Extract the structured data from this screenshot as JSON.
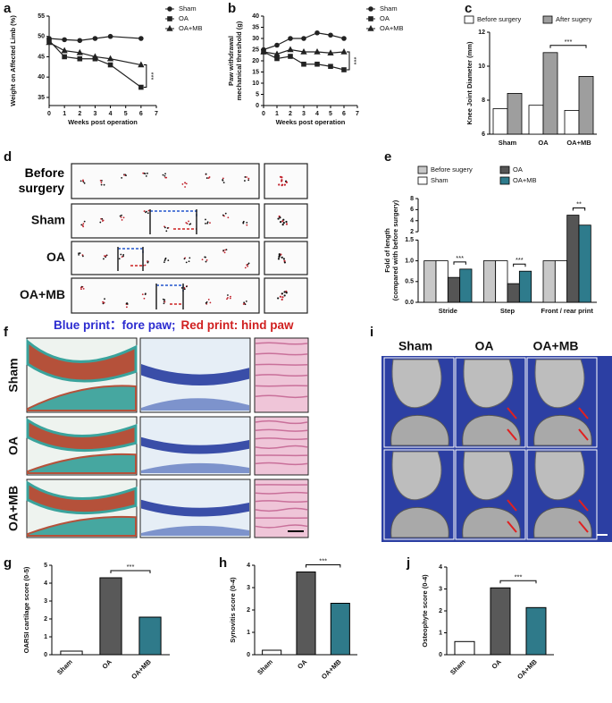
{
  "chart_data": [
    {
      "type": "line",
      "label": "a",
      "ylabel": "Weight on Affected Limb (%)",
      "xlabel": "Weeks post operation",
      "x": [
        0,
        1,
        2,
        3,
        4,
        6
      ],
      "xlim": [
        0,
        7
      ],
      "xticks": [
        0,
        1,
        2,
        3,
        4,
        5,
        6,
        7
      ],
      "ylim": [
        33,
        55
      ],
      "yticks": [
        35,
        40,
        45,
        50,
        55
      ],
      "legend": "right",
      "series": [
        {
          "name": "Sham",
          "color": "#222222",
          "marker": "circle",
          "values": [
            49.5,
            49.2,
            49,
            49.5,
            50,
            49.5
          ]
        },
        {
          "name": "OA",
          "color": "#222222",
          "marker": "square",
          "values": [
            49,
            45,
            44.5,
            44.5,
            43,
            37.5
          ]
        },
        {
          "name": "OA+MB",
          "color": "#222222",
          "marker": "triangle",
          "values": [
            48.5,
            46.5,
            46,
            45,
            44.5,
            43
          ]
        }
      ],
      "annotations": [
        {
          "text": "***",
          "from": "OA",
          "to": "OA+MB"
        }
      ]
    },
    {
      "type": "line",
      "label": "b",
      "ylabel": [
        "Paw withdrawal",
        "mechanical threshold (g)"
      ],
      "xlabel": "Weeks post operation",
      "x": [
        0,
        1,
        2,
        3,
        4,
        5,
        6
      ],
      "xlim": [
        0,
        7
      ],
      "xticks": [
        0,
        1,
        2,
        3,
        4,
        5,
        6,
        7
      ],
      "ylim": [
        0,
        40
      ],
      "yticks": [
        0,
        5,
        10,
        15,
        20,
        25,
        30,
        35,
        40
      ],
      "legend": "right",
      "series": [
        {
          "name": "Sham",
          "color": "#222222",
          "marker": "circle",
          "values": [
            25,
            27,
            30,
            30,
            32.5,
            31.5,
            30
          ]
        },
        {
          "name": "OA",
          "color": "#222222",
          "marker": "square",
          "values": [
            24,
            21,
            22,
            18.5,
            18.5,
            17.5,
            16
          ]
        },
        {
          "name": "OA+MB",
          "color": "#222222",
          "marker": "triangle",
          "values": [
            24,
            23,
            25,
            24,
            24,
            23.5,
            24
          ]
        }
      ],
      "annotations": [
        {
          "text": "***",
          "from": "OA",
          "to": "OA+MB"
        }
      ]
    },
    {
      "type": "bar",
      "label": "c",
      "ylabel": "Knee Joint Diameter (mm)",
      "categories": [
        "Sham",
        "OA",
        "OA+MB"
      ],
      "ylim": [
        6,
        12
      ],
      "yticks": [
        6,
        8,
        10,
        12
      ],
      "legend": "top",
      "series": [
        {
          "name": "Before surgery",
          "color": "#ffffff",
          "values": [
            7.5,
            7.7,
            7.4
          ]
        },
        {
          "name": "After sugery",
          "color": "#9e9e9e",
          "values": [
            8.4,
            10.8,
            9.4
          ]
        }
      ],
      "annotations": [
        {
          "text": "***",
          "from": [
            "OA",
            "After sugery"
          ],
          "to": [
            "OA+MB",
            "After sugery"
          ]
        }
      ]
    },
    {
      "type": "bar",
      "label": "e",
      "ylabel": [
        "Fold of length",
        "(compared  with before surgery)"
      ],
      "categories": [
        "Stride",
        "Step",
        "Front / rear print"
      ],
      "ylim": [
        0,
        8
      ],
      "ybreak": [
        1.5,
        2
      ],
      "yticks": [
        {
          "value": 0,
          "label": "0.0"
        },
        0.5,
        {
          "value": 1,
          "label": "1.0"
        },
        1.5,
        2,
        4,
        6,
        8
      ],
      "legend": "top",
      "series": [
        {
          "name": "Before sugery",
          "color": "#c8c8c8",
          "values": [
            1.0,
            1.0,
            1.0
          ]
        },
        {
          "name": "Sham",
          "color": "#ffffff",
          "values": [
            1.0,
            1.0,
            1.0
          ]
        },
        {
          "name": "OA",
          "color": "#555555",
          "values": [
            0.6,
            0.45,
            5.0
          ]
        },
        {
          "name": "OA+MB",
          "color": "#2e7b8c",
          "values": [
            0.8,
            0.75,
            3.2
          ]
        }
      ],
      "annotations": [
        {
          "text": "***",
          "from": [
            "Stride",
            "OA"
          ],
          "to": [
            "Stride",
            "OA+MB"
          ]
        },
        {
          "text": "***",
          "from": [
            "Step",
            "OA"
          ],
          "to": [
            "Step",
            "OA+MB"
          ]
        },
        {
          "text": "**",
          "from": [
            "Front / rear print",
            "OA"
          ],
          "to": [
            "Front / rear print",
            "OA+MB"
          ]
        }
      ]
    },
    {
      "type": "bar",
      "label": "g",
      "ylabel": "OARSI cartilage score  (0-5)",
      "categories": [
        "Sham",
        "OA",
        "OA+MB"
      ],
      "values": [
        0.2,
        4.3,
        2.1
      ],
      "colors": [
        "#ffffff",
        "#595959",
        "#2f7a8a"
      ],
      "ylim": [
        0,
        5
      ],
      "yticks": [
        0,
        1,
        2,
        3,
        4,
        5
      ],
      "xtick_rotation": 45,
      "annotations": [
        {
          "text": "***",
          "from": [
            "OA"
          ],
          "to": [
            "OA+MB"
          ]
        }
      ]
    },
    {
      "type": "bar",
      "label": "h",
      "ylabel": "Synovitis score (0-4)",
      "categories": [
        "Sham",
        "OA",
        "OA+MB"
      ],
      "values": [
        0.2,
        3.7,
        2.3
      ],
      "colors": [
        "#ffffff",
        "#595959",
        "#2f7a8a"
      ],
      "ylim": [
        0,
        4
      ],
      "yticks": [
        0,
        1,
        2,
        3,
        4
      ],
      "xtick_rotation": 45,
      "annotations": [
        {
          "text": "***",
          "from": [
            "OA"
          ],
          "to": [
            "OA+MB"
          ]
        }
      ]
    },
    {
      "type": "bar",
      "label": "j",
      "ylabel": "Osteophyte score (0-4)",
      "categories": [
        "Sham",
        "OA",
        "OA+MB"
      ],
      "values": [
        0.6,
        3.05,
        2.15
      ],
      "colors": [
        "#ffffff",
        "#595959",
        "#2f7a8a"
      ],
      "ylim": [
        0,
        4
      ],
      "yticks": [
        0,
        1,
        2,
        3,
        4
      ],
      "xtick_rotation": 45,
      "annotations": [
        {
          "text": "***",
          "from": [
            "OA"
          ],
          "to": [
            "OA+MB"
          ]
        }
      ]
    }
  ],
  "figure_panels": [
    {
      "label": "d",
      "rows": [
        "Before surgery",
        "Sham",
        "OA",
        "OA+MB"
      ],
      "caption": [
        "Blue print：fore paw;",
        "Red print: hind paw"
      ]
    },
    {
      "label": "f",
      "rows": [
        "Sham",
        "OA",
        "OA+MB"
      ]
    },
    {
      "label": "i",
      "columns": [
        "Sham",
        "OA",
        "OA+MB"
      ]
    }
  ]
}
